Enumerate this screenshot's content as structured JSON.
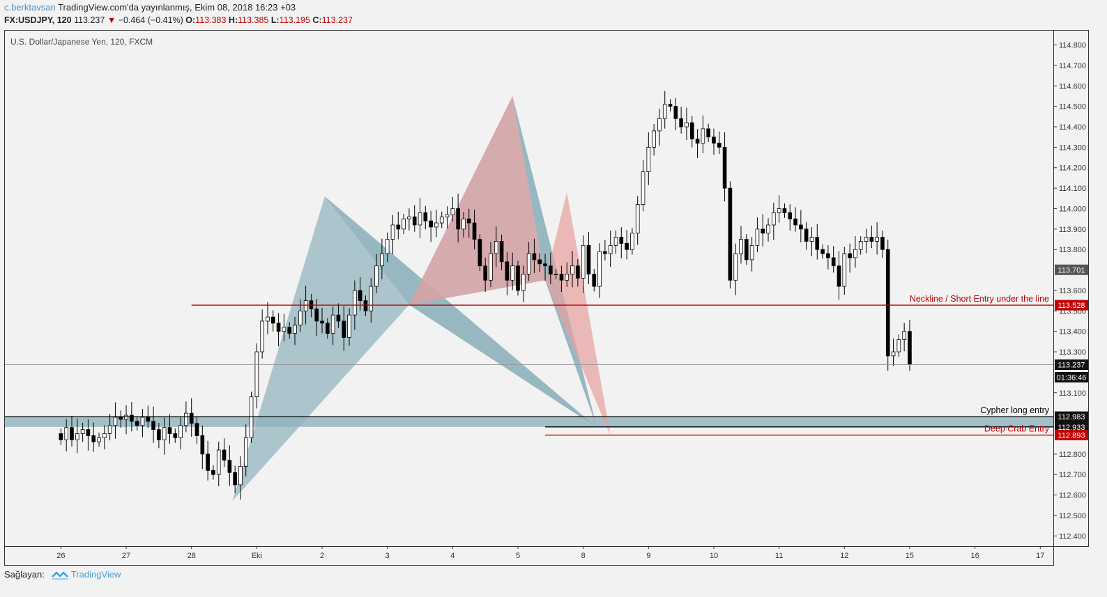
{
  "header": {
    "author": "c.berktavsan",
    "published": "TradingView.com'da yayınlanmış, Ekim 08, 2018 16:23 +03",
    "symbol": "FX:USDJPY, 120",
    "last": "113.237",
    "change": "−0.464 (−0.41%)",
    "o_label": "O:",
    "o_value": "113.383",
    "h_label": "H:",
    "h_value": "113.385",
    "l_label": "L:",
    "l_value": "113.195",
    "c_label": "C:",
    "c_value": "113.237"
  },
  "footer": {
    "label": "Sağlayan:",
    "brand": "TradingView"
  },
  "colors": {
    "background": "#f2f2f2",
    "up_candle": "#ffffff",
    "down_candle": "#000000",
    "blue_pattern": "#8fb2bc",
    "red_pattern": "#e8a0a0",
    "neckline": "#c00000"
  },
  "chart_data": {
    "type": "candlestick",
    "title": "U.S. Dollar/Japanese Yen, 120, FXCM",
    "ylim": [
      112.35,
      114.87
    ],
    "y_ticks": [
      "114.800",
      "114.700",
      "114.600",
      "114.500",
      "114.400",
      "114.300",
      "114.200",
      "114.100",
      "114.000",
      "113.900",
      "113.800",
      "113.600",
      "113.500",
      "113.400",
      "113.300",
      "113.100",
      "112.800",
      "112.700",
      "112.600",
      "112.500",
      "112.400"
    ],
    "x_ticks": [
      "26",
      "27",
      "28",
      "Eki",
      "2",
      "3",
      "4",
      "5",
      "8",
      "9",
      "10",
      "11",
      "12",
      "15",
      "16",
      "17"
    ],
    "x_tick_index": [
      0,
      12,
      24,
      36,
      48,
      60,
      72,
      84,
      96,
      108,
      120,
      132,
      144,
      156,
      168,
      180
    ],
    "x_index_min": -10.3,
    "x_index_max": 182.4,
    "closes": [
      112.87,
      112.93,
      112.87,
      112.9,
      112.92,
      112.89,
      112.86,
      112.88,
      112.9,
      112.94,
      112.98,
      112.97,
      112.99,
      112.96,
      112.94,
      112.98,
      112.96,
      112.92,
      112.87,
      112.93,
      112.9,
      112.88,
      112.94,
      113.0,
      112.95,
      112.89,
      112.8,
      112.72,
      112.7,
      112.82,
      112.77,
      112.71,
      112.65,
      112.74,
      112.88,
      113.08,
      113.3,
      113.45,
      113.47,
      113.44,
      113.4,
      113.42,
      113.39,
      113.43,
      113.5,
      113.55,
      113.51,
      113.45,
      113.44,
      113.39,
      113.48,
      113.45,
      113.37,
      113.48,
      113.6,
      113.55,
      113.5,
      113.62,
      113.72,
      113.78,
      113.85,
      113.92,
      113.9,
      113.95,
      113.96,
      113.92,
      113.98,
      113.94,
      113.91,
      113.93,
      113.96,
      113.97,
      114.0,
      113.9,
      113.95,
      113.93,
      113.85,
      113.72,
      113.65,
      113.78,
      113.84,
      113.74,
      113.65,
      113.72,
      113.6,
      113.68,
      113.78,
      113.75,
      113.73,
      113.72,
      113.68,
      113.68,
      113.65,
      113.68,
      113.72,
      113.66,
      113.82,
      113.68,
      113.62,
      113.79,
      113.78,
      113.82,
      113.86,
      113.83,
      113.8,
      113.88,
      114.02,
      114.18,
      114.3,
      114.38,
      114.44,
      114.51,
      114.5,
      114.44,
      114.4,
      114.42,
      114.34,
      114.32,
      114.39,
      114.35,
      114.32,
      114.3,
      114.1,
      113.65,
      113.78,
      113.85,
      113.75,
      113.82,
      113.9,
      113.88,
      113.92,
      113.98,
      114.0,
      113.98,
      113.95,
      113.92,
      113.9,
      113.84,
      113.86,
      113.8,
      113.78,
      113.76,
      113.72,
      113.62,
      113.78,
      113.76,
      113.8,
      113.84,
      113.86,
      113.84,
      113.86,
      113.8,
      113.28,
      113.3,
      113.36,
      113.4,
      113.24
    ],
    "patterns": [
      {
        "name": "cypher-bullish",
        "color": "blue",
        "points": [
          [
            31.5,
            112.57
          ],
          [
            48.5,
            114.06
          ],
          [
            64,
            113.53
          ],
          [
            98.5,
            112.93
          ]
        ]
      },
      {
        "name": "cypher-bearish",
        "color": "blue",
        "points": [
          [
            64,
            113.53
          ],
          [
            83,
            114.55
          ],
          [
            89,
            113.65
          ],
          [
            98.5,
            112.93
          ]
        ]
      },
      {
        "name": "crab-bearish",
        "color": "red",
        "points": [
          [
            64,
            113.53
          ],
          [
            83,
            114.55
          ],
          [
            89,
            113.65
          ],
          [
            93,
            114.08
          ],
          [
            101,
            112.89
          ]
        ]
      }
    ],
    "annotations": [
      {
        "label": "Neckline / Short Entry under the line",
        "price": "113.528",
        "value": 113.528,
        "color": "#c00000",
        "style": "line-red",
        "x_start_index": 24
      },
      {
        "label": "Cypher long entry",
        "price": "112.983",
        "value": 112.983,
        "color": "#000000",
        "style": "line-black-zone",
        "x_start_index": -10.3
      },
      {
        "label": "",
        "price": "112.933",
        "value": 112.933,
        "color": "#000000",
        "style": "line-black",
        "x_start_index": 89
      },
      {
        "label": "Deep Crab Entry",
        "price": "112.893",
        "value": 112.893,
        "color": "#c00000",
        "style": "line-red",
        "x_start_index": 89
      }
    ],
    "price_tags": [
      {
        "value": 113.701,
        "label": "113.701",
        "bg": "#555555"
      },
      {
        "value": 113.237,
        "label": "113.237",
        "bg": "#111111"
      }
    ],
    "countdown": "01:36:46"
  }
}
